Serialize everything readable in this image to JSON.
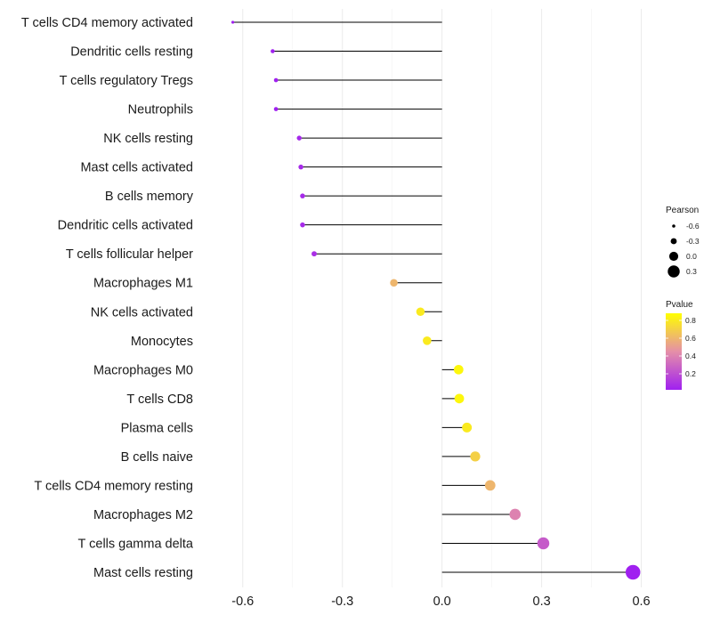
{
  "chart_data": {
    "type": "lollipop",
    "title": "",
    "xlabel": "",
    "ylabel": "",
    "xlim": [
      -0.72,
      0.62
    ],
    "x_ticks": [
      -0.6,
      -0.3,
      0.0,
      0.3,
      0.6
    ],
    "x_tick_labels": [
      "-0.6",
      "-0.3",
      "0.0",
      "0.3",
      "0.6"
    ],
    "grid": true,
    "categories": [
      "T cells CD4 memory activated",
      "Dendritic cells resting",
      "T cells regulatory  Tregs",
      "Neutrophils",
      "NK cells resting",
      "Mast cells activated",
      "B cells memory",
      "Dendritic cells activated",
      "T cells follicular helper",
      "Macrophages M1",
      "NK cells activated",
      "Monocytes",
      "Macrophages M0",
      "T cells CD8",
      "Plasma cells",
      "B cells naive",
      "T cells CD4 memory resting",
      "Macrophages M2",
      "T cells gamma delta",
      "Mast cells resting"
    ],
    "pearson": [
      -0.63,
      -0.51,
      -0.5,
      -0.5,
      -0.43,
      -0.425,
      -0.42,
      -0.42,
      -0.385,
      -0.145,
      -0.065,
      -0.045,
      0.05,
      0.052,
      0.075,
      0.1,
      0.145,
      0.22,
      0.305,
      0.575
    ],
    "pvalue": [
      0.01,
      0.02,
      0.02,
      0.02,
      0.05,
      0.06,
      0.06,
      0.06,
      0.08,
      0.6,
      0.8,
      0.8,
      0.85,
      0.85,
      0.8,
      0.7,
      0.6,
      0.4,
      0.25,
      0.02
    ],
    "size_legend": {
      "title": "Pearson",
      "values": [
        -0.6,
        -0.3,
        0.0,
        0.3
      ],
      "labels": [
        "-0.6",
        "-0.3",
        "0.0",
        "0.3"
      ]
    },
    "color_legend": {
      "title": "Pvalue",
      "range": [
        0.02,
        0.88
      ],
      "ticks": [
        0.2,
        0.4,
        0.6,
        0.8
      ],
      "labels": [
        "0.2",
        "0.4",
        "0.6",
        "0.8"
      ],
      "color_low": "#A020F0",
      "color_mid": "#E58FA8",
      "color_high": "#FFFF00"
    }
  }
}
